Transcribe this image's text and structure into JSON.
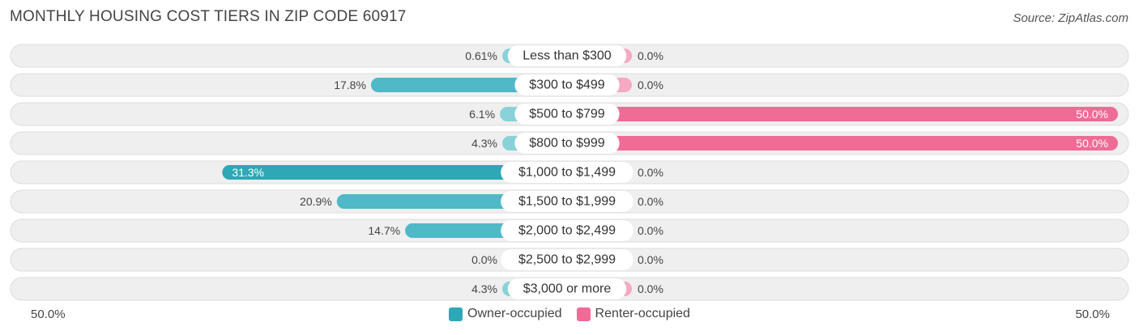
{
  "title": "MONTHLY HOUSING COST TIERS IN ZIP CODE 60917",
  "source": "Source: ZipAtlas.com",
  "colors": {
    "owner": "#4fb9c7",
    "owner_light": "#8ad2da",
    "owner_dark": "#2ea7b6",
    "renter": "#f06b95",
    "renter_light": "#f6a9c2",
    "row_bg": "#efefef",
    "row_border": "#dcdcdc"
  },
  "axis": {
    "left_label": "50.0%",
    "right_label": "50.0%"
  },
  "legend": {
    "owner_label": "Owner-occupied",
    "renter_label": "Renter-occupied"
  },
  "chart_data": {
    "type": "bar",
    "orientation": "horizontal-diverging",
    "xlim": [
      -50,
      50
    ],
    "categories": [
      "Less than $300",
      "$300 to $499",
      "$500 to $799",
      "$800 to $999",
      "$1,000 to $1,499",
      "$1,500 to $1,999",
      "$2,000 to $2,499",
      "$2,500 to $2,999",
      "$3,000 or more"
    ],
    "series": [
      {
        "name": "Owner-occupied",
        "values": [
          0.61,
          17.8,
          6.1,
          4.3,
          31.3,
          20.9,
          14.7,
          0.0,
          4.3
        ],
        "labels": [
          "0.61%",
          "17.8%",
          "6.1%",
          "4.3%",
          "31.3%",
          "20.9%",
          "14.7%",
          "0.0%",
          "4.3%"
        ]
      },
      {
        "name": "Renter-occupied",
        "values": [
          0.0,
          0.0,
          50.0,
          50.0,
          0.0,
          0.0,
          0.0,
          0.0,
          0.0
        ],
        "labels": [
          "0.0%",
          "0.0%",
          "50.0%",
          "50.0%",
          "0.0%",
          "0.0%",
          "0.0%",
          "0.0%",
          "0.0%"
        ]
      }
    ]
  }
}
